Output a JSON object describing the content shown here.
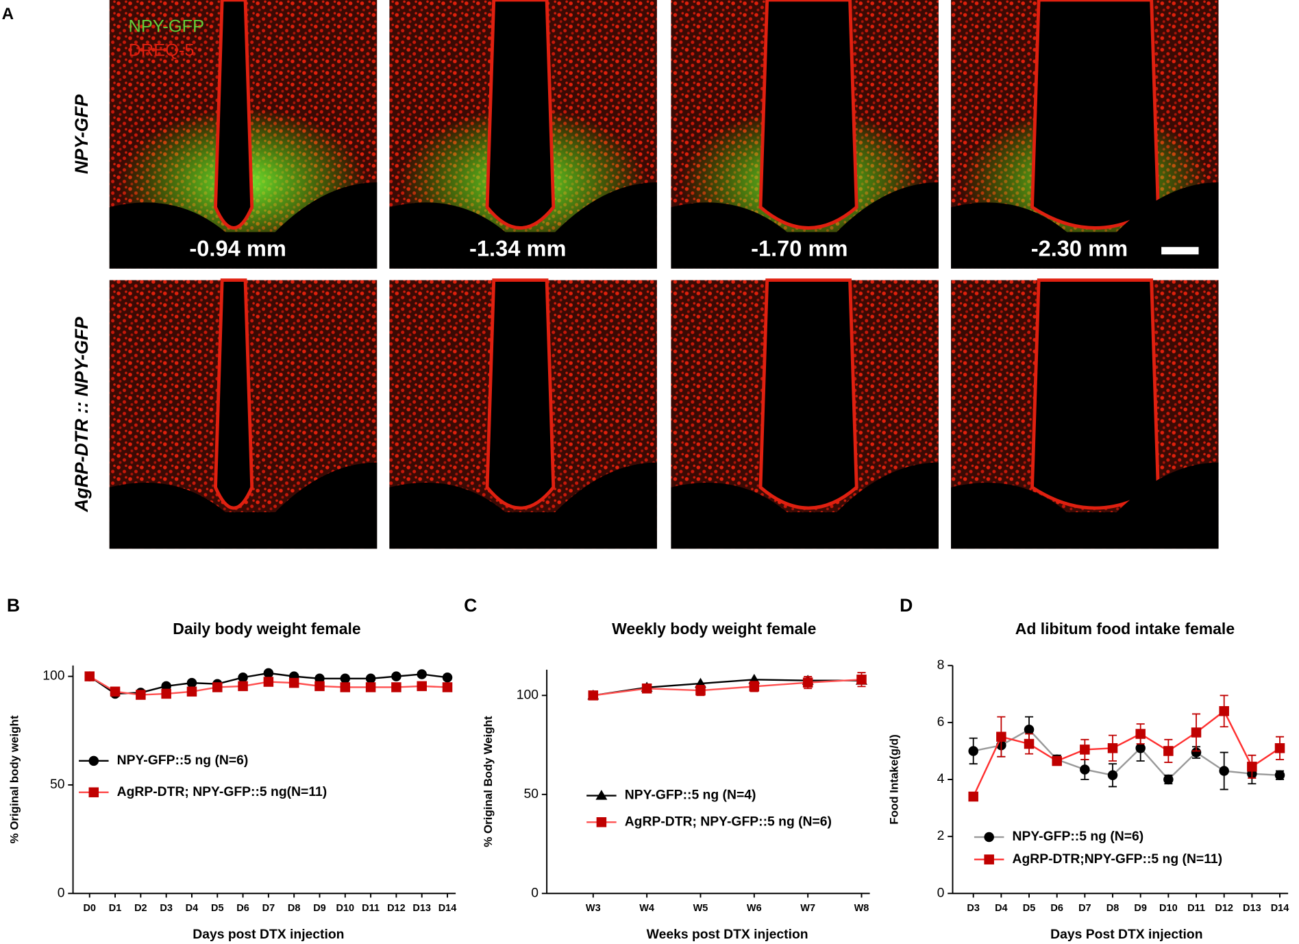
{
  "panel_a": {
    "label": "A",
    "legend": [
      "NPY-GFP",
      "DREQ-5"
    ],
    "rows": [
      "NPY-GFP",
      "AgRP-DTR :: NPY-GFP"
    ],
    "positions": [
      "-0.94 mm",
      "-1.34 mm",
      "-1.70 mm",
      "-2.30 mm"
    ]
  },
  "chart_data": [
    {
      "type": "line",
      "panel": "B",
      "title": "Daily body weight female",
      "x_label": "Days post DTX injection",
      "y_label": "% Original body weight",
      "categories": [
        "D0",
        "D1",
        "D2",
        "D3",
        "D4",
        "D5",
        "D6",
        "D7",
        "D8",
        "D9",
        "D10",
        "D11",
        "D12",
        "D13",
        "D14"
      ],
      "ylim": [
        0,
        105
      ],
      "yticks": [
        0,
        50,
        100
      ],
      "legend": "center left",
      "series": [
        {
          "name": "NPY-GFP::5 ng (N=6)",
          "color": "#000000",
          "marker": "circle",
          "values": [
            100,
            92,
            92.5,
            95.5,
            97,
            96.5,
            99.5,
            101.5,
            100,
            99,
            99,
            99,
            100,
            101,
            99.5
          ]
        },
        {
          "name": "AgRP-DTR; NPY-GFP::5 ng(N=11)",
          "color": "#c00000",
          "line_color": "#ff5050",
          "marker": "square",
          "values": [
            100,
            93,
            91.5,
            92,
            93,
            95,
            95.5,
            97.5,
            97,
            95.5,
            95,
            95,
            95,
            95.5,
            95
          ]
        }
      ]
    },
    {
      "type": "line",
      "panel": "C",
      "title": "Weekly body weight female",
      "x_label": "Weeks post DTX injection",
      "y_label": "% Original Body Weight",
      "categories": [
        "W3",
        "W4",
        "W5",
        "W6",
        "W7",
        "W8"
      ],
      "ylim": [
        0,
        113
      ],
      "yticks": [
        0,
        50,
        100
      ],
      "legend": "lower left",
      "series": [
        {
          "name": "NPY-GFP::5 ng (N=4)",
          "color": "#000000",
          "marker": "triangle",
          "values": [
            100,
            104,
            106,
            108,
            107.5,
            107.5
          ]
        },
        {
          "name": "AgRP-DTR; NPY-GFP::5 ng (N=6)",
          "color": "#c00000",
          "line_color": "#ff5050",
          "marker": "square",
          "values": [
            100,
            103.5,
            102.5,
            104.5,
            106.5,
            108
          ],
          "errors": [
            0.5,
            1,
            2.5,
            2.5,
            3,
            3.5
          ]
        }
      ]
    },
    {
      "type": "line",
      "panel": "D",
      "title": "Ad libitum food intake female",
      "x_label": "Days Post DTX injection",
      "y_label": "Food Intake(g/d)",
      "categories": [
        "D3",
        "D4",
        "D5",
        "D6",
        "D7",
        "D8",
        "D9",
        "D10",
        "D11",
        "D12",
        "D13",
        "D14"
      ],
      "ylim": [
        0,
        8
      ],
      "yticks": [
        0,
        2,
        4,
        6,
        8
      ],
      "legend": "lower left",
      "series": [
        {
          "name": "NPY-GFP::5 ng (N=6)",
          "color": "#000000",
          "line_color": "#999999",
          "marker": "circle",
          "values": [
            5.0,
            5.2,
            5.75,
            4.7,
            4.35,
            4.15,
            5.1,
            4.0,
            4.95,
            4.3,
            4.2,
            4.15
          ],
          "errors": [
            0.45,
            0.4,
            0.45,
            0.15,
            0.35,
            0.4,
            0.45,
            0.15,
            0.2,
            0.65,
            0.35,
            0.15
          ]
        },
        {
          "name": "AgRP-DTR;NPY-GFP::5 ng (N=11)",
          "color": "#c00000",
          "line_color": "#ff3030",
          "marker": "square",
          "values": [
            3.4,
            5.5,
            5.25,
            4.65,
            5.05,
            5.1,
            5.6,
            5.0,
            5.65,
            6.4,
            4.45,
            5.1
          ],
          "errors": [
            0.05,
            0.7,
            0.35,
            0.15,
            0.35,
            0.45,
            0.35,
            0.4,
            0.65,
            0.55,
            0.4,
            0.4
          ]
        }
      ]
    }
  ]
}
